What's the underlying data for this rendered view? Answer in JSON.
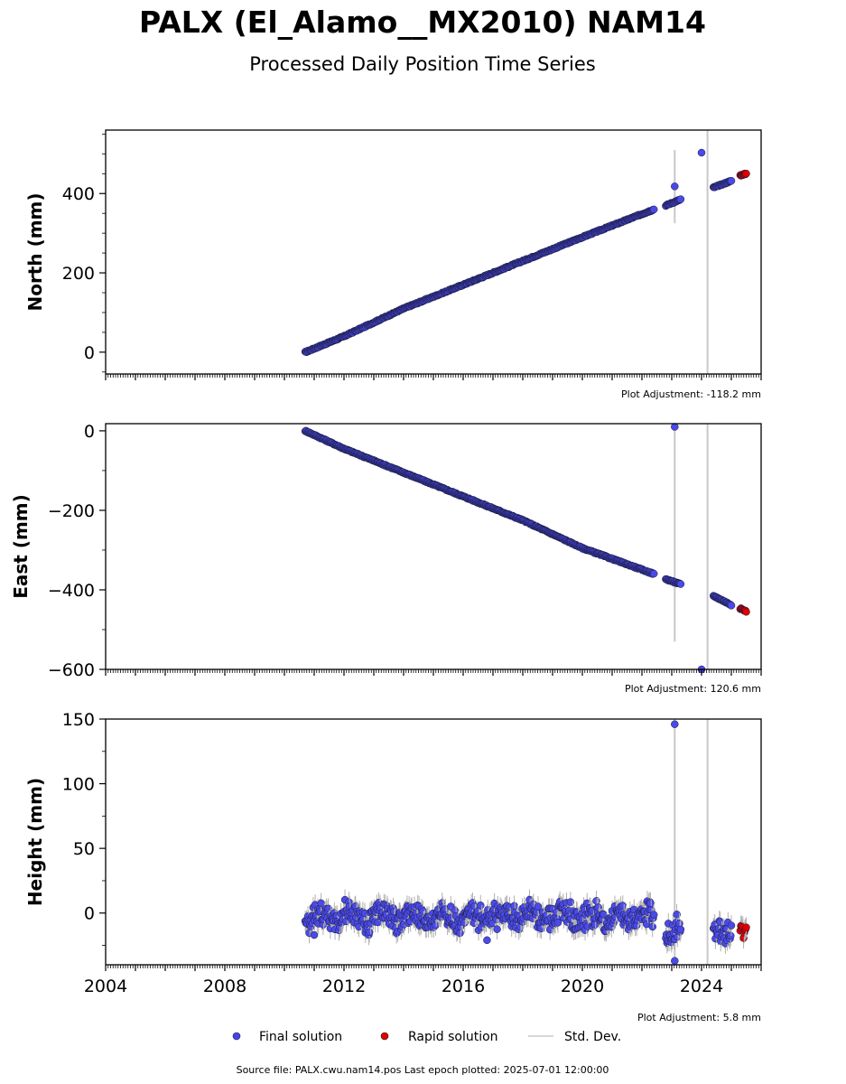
{
  "figure": {
    "title": "PALX (El_Alamo__MX2010) NAM14",
    "subtitle": "Processed Daily Position Time Series",
    "source_note": "Source file: PALX.cwu.nam14.pos  Last epoch plotted: 2025-07-01 12:00:00"
  },
  "legend": {
    "items": [
      {
        "label": "Final solution",
        "marker": "dot",
        "color": "#4444ee"
      },
      {
        "label": "Rapid solution",
        "marker": "dot",
        "color": "#dd0000"
      },
      {
        "label": "Std. Dev.",
        "marker": "line",
        "color": "#cccccc"
      }
    ]
  },
  "colors": {
    "final": "#4a4ae8",
    "final_edge": "#1a1a3a",
    "rapid": "#e00000",
    "std_dev": "#c8c8c8"
  },
  "chart_data": [
    {
      "type": "scatter",
      "ylabel": "North (mm)",
      "adjustment": "Plot Adjustment: -118.2 mm",
      "xlim": [
        2004.0,
        2026.0
      ],
      "ylim": [
        -55,
        560
      ],
      "yticks": [
        0,
        200,
        400
      ],
      "ytick_labels": [
        "0",
        "200",
        "400"
      ],
      "yminor_step": 50,
      "show_xtick_labels": false,
      "series": [
        {
          "name": "Final solution",
          "x": [
            2010.7,
            2012.0,
            2014.0,
            2016.0,
            2018.0,
            2020.0,
            2022.4
          ],
          "y": [
            0,
            40,
            110,
            170,
            230,
            290,
            360
          ]
        },
        {
          "name": "Final solution",
          "x": [
            2022.8,
            2023.3
          ],
          "y": [
            370,
            385
          ]
        },
        {
          "name": "Final solution",
          "x": [
            2024.4,
            2025.0
          ],
          "y": [
            415,
            432
          ]
        },
        {
          "name": "Rapid solution",
          "x": [
            2025.3,
            2025.5
          ],
          "y": [
            446,
            450
          ]
        }
      ],
      "outliers": [
        {
          "x": 2023.1,
          "y": 418
        },
        {
          "x": 2024.0,
          "y": 503
        }
      ],
      "std_bars": [
        {
          "x": 2023.1,
          "y0": 325,
          "y1": 510
        },
        {
          "x": 2024.2,
          "y0": -55,
          "y1": 560
        }
      ]
    },
    {
      "type": "scatter",
      "ylabel": "East (mm)",
      "adjustment": "Plot Adjustment: 120.6 mm",
      "xlim": [
        2004.0,
        2026.0
      ],
      "ylim": [
        -600,
        18
      ],
      "yticks": [
        -600,
        -400,
        -200,
        0
      ],
      "ytick_labels": [
        "−600",
        "−400",
        "−200",
        "0"
      ],
      "yminor_step": 100,
      "show_xtick_labels": false,
      "series": [
        {
          "name": "Final solution",
          "x": [
            2010.7,
            2012.0,
            2014.0,
            2016.0,
            2018.0,
            2020.0,
            2022.4
          ],
          "y": [
            0,
            -45,
            -105,
            -165,
            -225,
            -295,
            -360
          ]
        },
        {
          "name": "Final solution",
          "x": [
            2022.8,
            2023.3
          ],
          "y": [
            -373,
            -386
          ]
        },
        {
          "name": "Final solution",
          "x": [
            2024.4,
            2025.0
          ],
          "y": [
            -415,
            -438
          ]
        },
        {
          "name": "Rapid solution",
          "x": [
            2025.3,
            2025.5
          ],
          "y": [
            -447,
            -454
          ]
        }
      ],
      "outliers": [
        {
          "x": 2023.1,
          "y": 10
        },
        {
          "x": 2024.0,
          "y": -600
        }
      ],
      "std_bars": [
        {
          "x": 2023.1,
          "y0": -530,
          "y1": 10
        },
        {
          "x": 2024.2,
          "y0": -600,
          "y1": 18
        }
      ]
    },
    {
      "type": "scatter",
      "ylabel": "Height (mm)",
      "adjustment": "Plot Adjustment: 5.8 mm",
      "xlim": [
        2004.0,
        2026.0
      ],
      "ylim": [
        -40,
        150
      ],
      "yticks": [
        0,
        50,
        100,
        150
      ],
      "ytick_labels": [
        "0",
        "50",
        "100",
        "150"
      ],
      "yminor_step": 25,
      "show_xtick_labels": true,
      "xticks": [
        2004,
        2008,
        2012,
        2016,
        2020,
        2024
      ],
      "xtick_labels": [
        "2004",
        "2008",
        "2012",
        "2016",
        "2020",
        "2024"
      ],
      "series": [
        {
          "name": "Final solution",
          "x": [
            2010.7,
            2022.4
          ],
          "y": [
            -3,
            -3
          ],
          "noise": 7
        },
        {
          "name": "Final solution",
          "x": [
            2022.8,
            2023.3
          ],
          "y": [
            -15,
            -15
          ],
          "noise": 10
        },
        {
          "name": "Final solution",
          "x": [
            2024.4,
            2025.0
          ],
          "y": [
            -12,
            -12
          ],
          "noise": 7
        },
        {
          "name": "Rapid solution",
          "x": [
            2025.3,
            2025.5
          ],
          "y": [
            -15,
            -15
          ],
          "noise": 4
        }
      ],
      "outliers": [
        {
          "x": 2023.1,
          "y": 146
        },
        {
          "x": 2023.1,
          "y": -37
        },
        {
          "x": 2016.8,
          "y": -21
        },
        {
          "x": 2011.0,
          "y": -17
        }
      ],
      "std_bars": [
        {
          "x": 2023.1,
          "y0": -40,
          "y1": 150
        },
        {
          "x": 2024.2,
          "y0": -40,
          "y1": 150
        }
      ]
    }
  ]
}
